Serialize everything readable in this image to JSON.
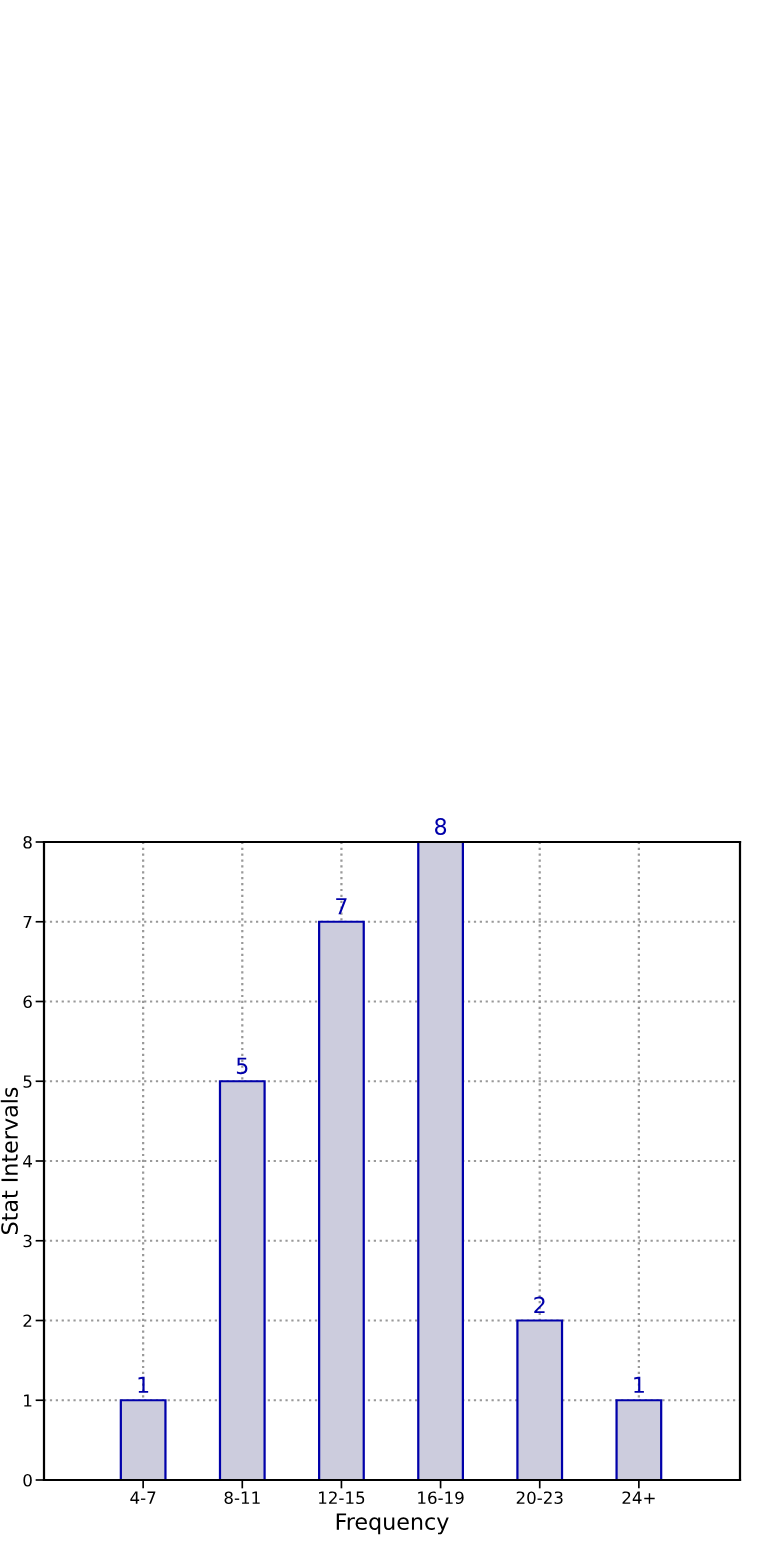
{
  "chart_data": {
    "type": "bar",
    "xlabel": "Frequency",
    "ylabel": "Stat Intervals",
    "categories": [
      "4-7",
      "8-11",
      "12-15",
      "16-19",
      "20-23",
      "24+"
    ],
    "values": [
      1,
      5,
      7,
      8,
      2,
      1
    ],
    "color": "#ccccdd",
    "ylim": [
      0,
      8
    ],
    "yticks": [
      0,
      1,
      2,
      3,
      4,
      5,
      6,
      7,
      8
    ],
    "grid": true,
    "data_labels": true
  }
}
